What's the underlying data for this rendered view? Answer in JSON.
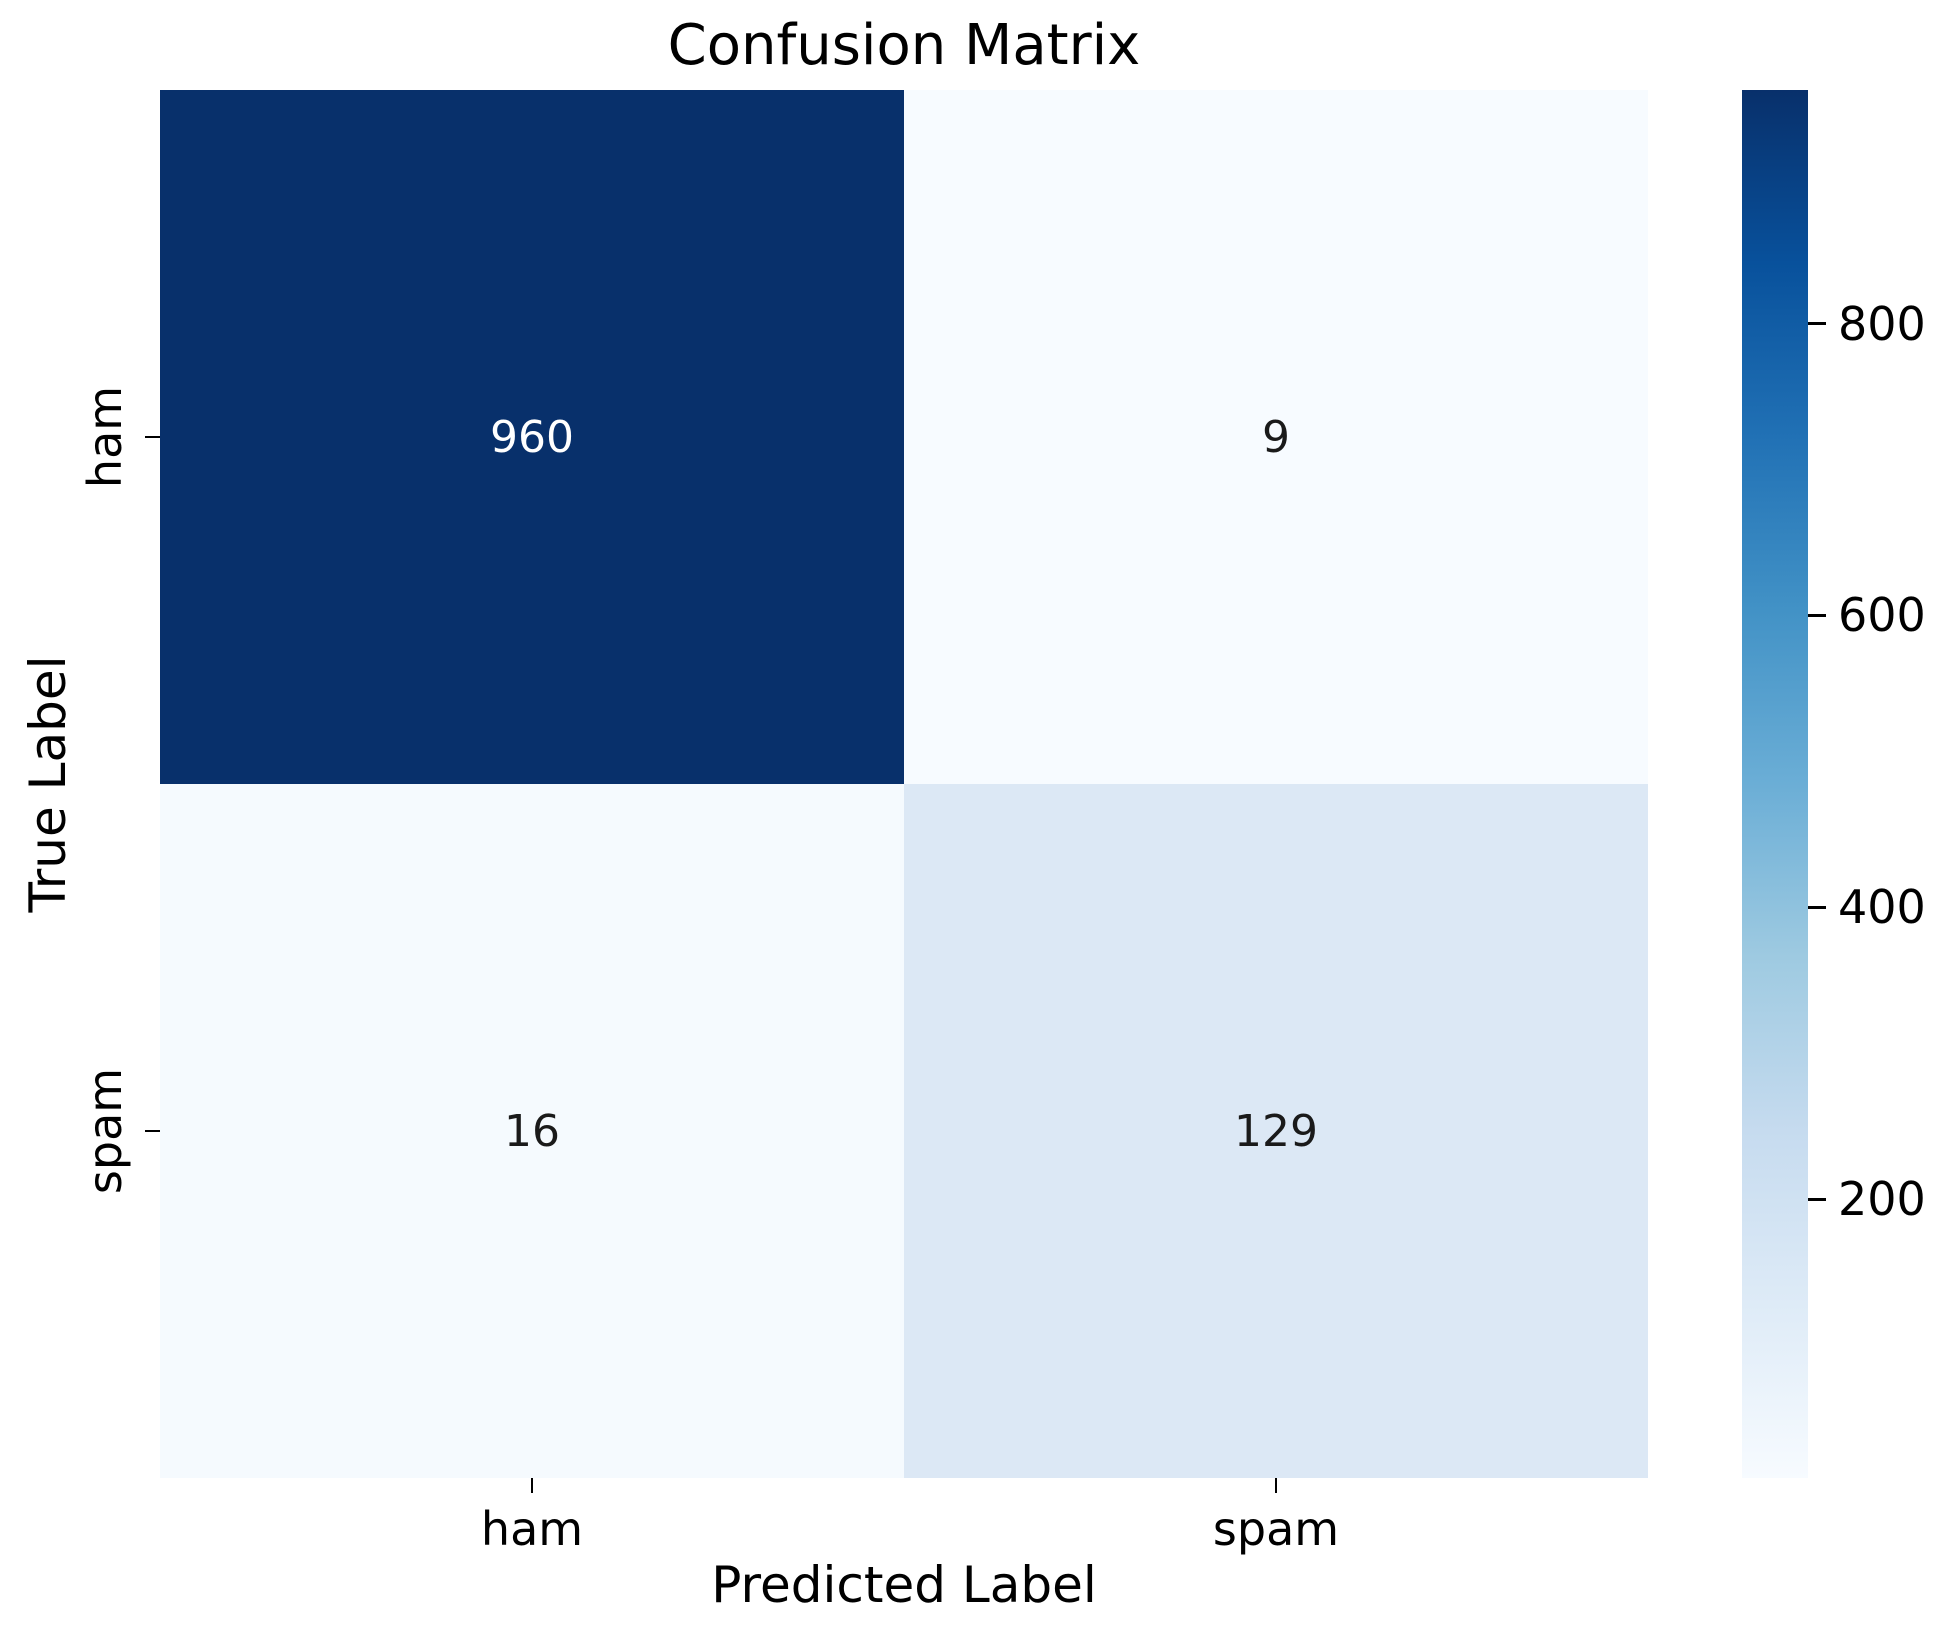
{
  "title": "Confusion Matrix",
  "chart_data": {
    "type": "heatmap",
    "title": "Confusion Matrix",
    "xlabel": "Predicted Label",
    "ylabel": "True Label",
    "x_ticklabels": [
      "ham",
      "spam"
    ],
    "y_ticklabels": [
      "ham",
      "spam"
    ],
    "rows": [
      [
        960,
        9
      ],
      [
        16,
        129
      ]
    ],
    "vmin": 9,
    "vmax": 960,
    "colormap": "Blues",
    "legend_position": "right-colorbar",
    "grid": false,
    "colorbar_ticks": [
      200,
      400,
      600,
      800
    ],
    "colormap_stops": [
      "#f7fbff",
      "#deebf7",
      "#c6dbef",
      "#9ecae1",
      "#6baed6",
      "#4292c6",
      "#2171b5",
      "#08519c",
      "#08306b"
    ],
    "cells": [
      {
        "true": "ham",
        "predicted": "ham",
        "value": "960",
        "bg": "#08306b",
        "fg": "#ffffff"
      },
      {
        "true": "ham",
        "predicted": "spam",
        "value": "9",
        "bg": "#f7fbff",
        "fg": "#1a1a1a"
      },
      {
        "true": "spam",
        "predicted": "ham",
        "value": "16",
        "bg": "#f5fafe",
        "fg": "#1a1a1a"
      },
      {
        "true": "spam",
        "predicted": "spam",
        "value": "129",
        "bg": "#dce8f5",
        "fg": "#1a1a1a"
      }
    ]
  }
}
